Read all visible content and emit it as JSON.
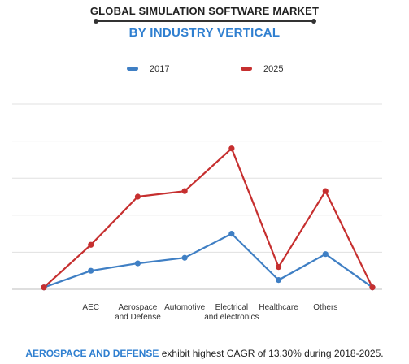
{
  "title": "GLOBAL SIMULATION SOFTWARE MARKET",
  "subtitle": "BY INDUSTRY VERTICAL",
  "colors": {
    "accent": "#2f7fd0",
    "series_2017": "#3f7fc4",
    "series_2025": "#c62f2f",
    "grid": "#e0e0e0"
  },
  "chart_data": {
    "type": "line",
    "categories": [
      "",
      "AEC",
      "Aerospace and Defense",
      "Automotive",
      "Electrical and electronics",
      "Healthcare",
      "Others",
      ""
    ],
    "category_label_lines": [
      [
        ""
      ],
      [
        "AEC"
      ],
      [
        "Aerospace",
        "and Defense"
      ],
      [
        "Automotive"
      ],
      [
        "Electrical",
        "and electronics"
      ],
      [
        "Healthcare"
      ],
      [
        "Others"
      ],
      [
        ""
      ]
    ],
    "series": [
      {
        "name": "2017",
        "values": [
          0.5,
          5,
          7,
          8.5,
          15,
          2.5,
          9.5,
          0.5
        ]
      },
      {
        "name": "2025",
        "values": [
          0.5,
          12,
          25,
          26.5,
          38,
          6,
          26.5,
          0.5
        ]
      }
    ],
    "ylim": [
      0,
      50
    ],
    "grid": true,
    "legend_position": "top-center",
    "title": "GLOBAL SIMULATION SOFTWARE MARKET",
    "subtitle": "BY INDUSTRY VERTICAL"
  },
  "footnote": {
    "highlight": "AEROSPACE AND DEFENSE",
    "text": " exhibit highest CAGR of 13.30% during 2018-2025."
  }
}
